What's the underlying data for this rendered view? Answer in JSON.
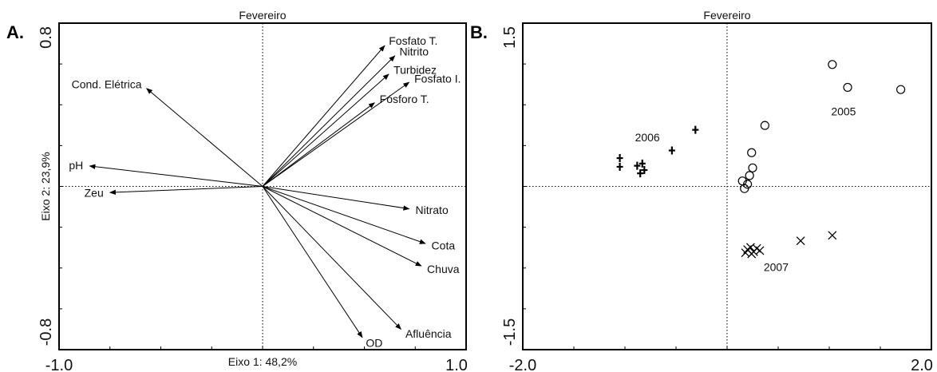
{
  "chart_data": [
    {
      "type": "scatter",
      "panel_label": "A.",
      "title": "Fevereiro",
      "xlabel": "Eixo 1: 48,2%",
      "ylabel": "Eixo 2: 23,9%",
      "xlim": [
        -1.0,
        1.0
      ],
      "ylim": [
        -0.8,
        0.8
      ],
      "x_tick_labels": [
        "-1.0",
        "1.0"
      ],
      "y_tick_labels": [
        "-0.8",
        "0.8"
      ],
      "vectors": [
        {
          "label": "Fosfato T.",
          "x": 0.6,
          "y": 0.69
        },
        {
          "label": "Nitrito",
          "x": 0.65,
          "y": 0.64
        },
        {
          "label": "Turbidez",
          "x": 0.62,
          "y": 0.55
        },
        {
          "label": "Fosfato I.",
          "x": 0.72,
          "y": 0.51
        },
        {
          "label": "Fósforo T.",
          "x": 0.55,
          "y": 0.41
        },
        {
          "label": "Cond. Elétrica",
          "x": -0.57,
          "y": 0.48
        },
        {
          "label": "pH",
          "x": -0.85,
          "y": 0.1
        },
        {
          "label": "Zeu",
          "x": -0.75,
          "y": -0.03
        },
        {
          "label": "Nitrato",
          "x": 0.72,
          "y": -0.11
        },
        {
          "label": "Cota",
          "x": 0.8,
          "y": -0.28
        },
        {
          "label": "Chuva",
          "x": 0.78,
          "y": -0.39
        },
        {
          "label": "OD",
          "x": 0.49,
          "y": -0.74
        },
        {
          "label": "Afluência",
          "x": 0.68,
          "y": -0.7
        }
      ]
    },
    {
      "type": "scatter",
      "panel_label": "B.",
      "title": "Fevereiro",
      "xlim": [
        -2.0,
        2.0
      ],
      "ylim": [
        -1.5,
        1.5
      ],
      "x_tick_labels": [
        "-2.0",
        "2.0"
      ],
      "y_tick_labels": [
        "-1.5",
        "1.5"
      ],
      "series": [
        {
          "name": "2005",
          "marker": "circle",
          "points": [
            [
              1.03,
              1.12
            ],
            [
              1.18,
              0.91
            ],
            [
              1.7,
              0.89
            ],
            [
              0.37,
              0.56
            ],
            [
              0.24,
              0.31
            ],
            [
              0.25,
              0.17
            ],
            [
              0.22,
              0.1
            ],
            [
              0.15,
              0.05
            ],
            [
              0.2,
              0.02
            ],
            [
              0.17,
              -0.02
            ]
          ]
        },
        {
          "name": "2006",
          "marker": "plus",
          "points": [
            [
              -0.31,
              0.52
            ],
            [
              -0.54,
              0.33
            ],
            [
              -1.05,
              0.26
            ],
            [
              -1.05,
              0.18
            ],
            [
              -0.83,
              0.21
            ],
            [
              -0.88,
              0.19
            ],
            [
              -0.81,
              0.15
            ],
            [
              -0.85,
              0.12
            ]
          ]
        },
        {
          "name": "2007",
          "marker": "cross",
          "points": [
            [
              1.03,
              -0.45
            ],
            [
              0.72,
              -0.5
            ],
            [
              0.2,
              -0.58
            ],
            [
              0.23,
              -0.56
            ],
            [
              0.26,
              -0.6
            ],
            [
              0.29,
              -0.57
            ],
            [
              0.18,
              -0.61
            ],
            [
              0.24,
              -0.62
            ],
            [
              0.32,
              -0.59
            ]
          ]
        }
      ]
    }
  ]
}
